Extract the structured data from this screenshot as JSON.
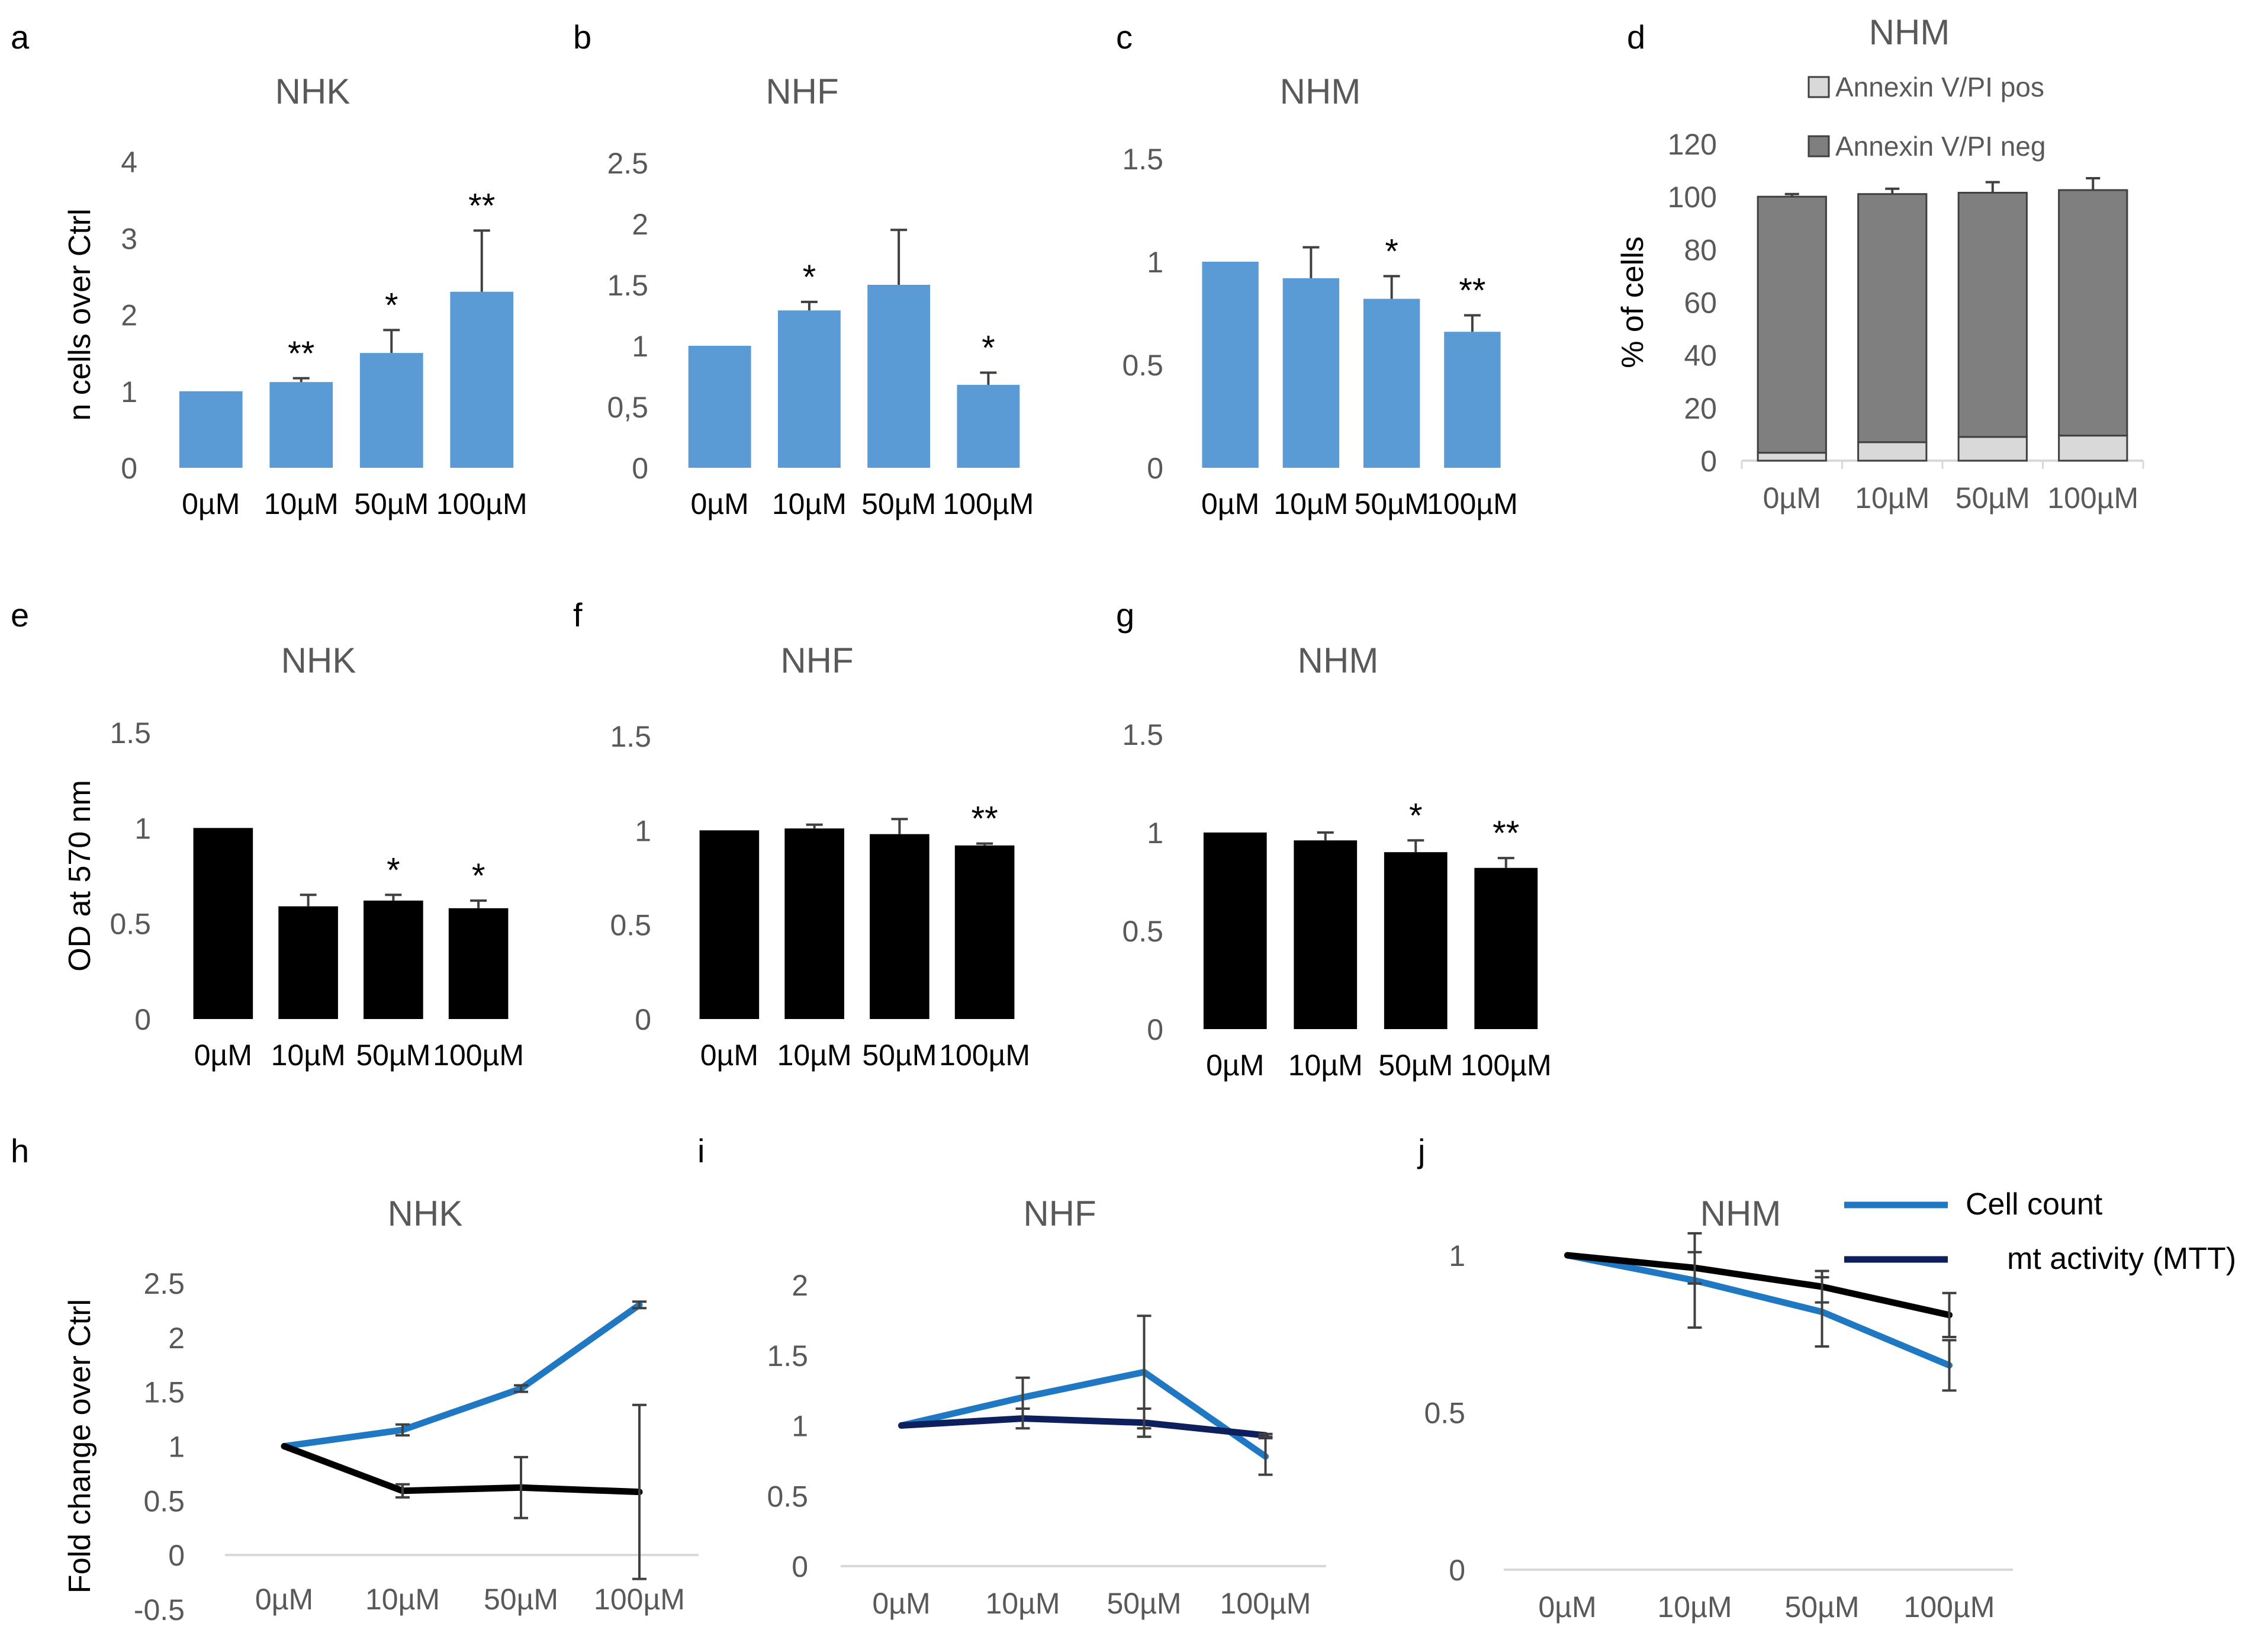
{
  "colors": {
    "blue_bar": "#5b9bd5",
    "black_bar": "#000000",
    "dark_gray": "#7f7f7f",
    "light_gray": "#d9d9d9",
    "axis": "#d9d9d9",
    "tick_text": "#595959",
    "error_bar": "#404040",
    "line_blue": "#1f78c1",
    "line_black": "#000000",
    "line_navy": "#0d1f5c"
  },
  "chart_data": [
    {
      "panel": "a",
      "type": "bar",
      "title": "NHK",
      "ylabel": "n cells over Ctrl",
      "categories": [
        "0µM",
        "10µM",
        "50µM",
        "100µM"
      ],
      "values": [
        1,
        1.12,
        1.5,
        2.3
      ],
      "errors": [
        0,
        0.05,
        0.3,
        0.8
      ],
      "sig": [
        "",
        "**",
        "*",
        "**"
      ],
      "ylim": [
        0,
        4
      ],
      "yticks": [
        "0",
        "1",
        "2",
        "3",
        "4"
      ]
    },
    {
      "panel": "b",
      "type": "bar",
      "title": "NHF",
      "ylabel": "",
      "categories": [
        "0µM",
        "10µM",
        "50µM",
        "100µM"
      ],
      "values": [
        1,
        1.29,
        1.5,
        0.68
      ],
      "errors": [
        0,
        0.07,
        0.45,
        0.1
      ],
      "sig": [
        "",
        "*",
        "",
        "*"
      ],
      "ylim": [
        0,
        2.5
      ],
      "yticks": [
        "0",
        "0,5",
        "1",
        "1.5",
        "2",
        "2.5"
      ]
    },
    {
      "panel": "c",
      "type": "bar",
      "title": "NHM",
      "ylabel": "",
      "categories": [
        "0µM",
        "10µM",
        "50µM",
        "100µM"
      ],
      "values": [
        1,
        0.92,
        0.82,
        0.66
      ],
      "errors": [
        0,
        0.15,
        0.11,
        0.08
      ],
      "sig": [
        "",
        "",
        "*",
        "**"
      ],
      "ylim": [
        0,
        1.5
      ],
      "yticks": [
        "0",
        "0.5",
        "1",
        "1.5"
      ]
    },
    {
      "panel": "d",
      "type": "stacked_bar",
      "title": "NHM",
      "ylabel": "% of cells",
      "categories": [
        "0µM",
        "10µM",
        "50µM",
        "100µM"
      ],
      "series": [
        {
          "name": "Annexin V/PI pos",
          "values": [
            3,
            7,
            9,
            9.5
          ],
          "errors": [
            1,
            2,
            4,
            4.5
          ]
        },
        {
          "name": "Annexin V/PI neg",
          "values": [
            97,
            94,
            92.5,
            93
          ],
          "errors": [
            1,
            2,
            4,
            4.5
          ]
        }
      ],
      "ylim": [
        0,
        120
      ],
      "yticks": [
        "0",
        "20",
        "40",
        "60",
        "80",
        "100",
        "120"
      ],
      "legend": [
        "Annexin V/PI pos",
        "Annexin V/PI neg"
      ]
    },
    {
      "panel": "e",
      "type": "bar",
      "title": "NHK",
      "ylabel": "OD at 570 nm",
      "categories": [
        "0µM",
        "10µM",
        "50µM",
        "100µM"
      ],
      "values": [
        1,
        0.59,
        0.62,
        0.58
      ],
      "errors": [
        0,
        0.06,
        0.03,
        0.04
      ],
      "sig": [
        "",
        "",
        "*",
        "*"
      ],
      "ylim": [
        0,
        1.5
      ],
      "yticks": [
        "0",
        "0.5",
        "1",
        "1.5"
      ]
    },
    {
      "panel": "f",
      "type": "bar",
      "title": "NHF",
      "ylabel": "",
      "categories": [
        "0µM",
        "10µM",
        "50µM",
        "100µM"
      ],
      "values": [
        1,
        1.01,
        0.98,
        0.92
      ],
      "errors": [
        0,
        0.02,
        0.08,
        0.01
      ],
      "sig": [
        "",
        "",
        "",
        "**"
      ],
      "ylim": [
        0,
        1.5
      ],
      "yticks": [
        "0",
        "0.5",
        "1",
        "1.5"
      ]
    },
    {
      "panel": "g",
      "type": "bar",
      "title": "NHM",
      "ylabel": "",
      "categories": [
        "0µM",
        "10µM",
        "50µM",
        "100µM"
      ],
      "values": [
        1,
        0.96,
        0.9,
        0.82
      ],
      "errors": [
        0,
        0.04,
        0.06,
        0.05
      ],
      "sig": [
        "",
        "",
        "*",
        "**"
      ],
      "ylim": [
        0,
        1.5
      ],
      "yticks": [
        "0",
        "0.5",
        "1",
        "1.5"
      ]
    },
    {
      "panel": "h",
      "type": "line",
      "title": "NHK",
      "ylabel": "Fold change over Ctrl",
      "categories": [
        "0µM",
        "10µM",
        "50µM",
        "100µM"
      ],
      "series": [
        {
          "name": "Cell count",
          "values": [
            1,
            1.15,
            1.53,
            2.3
          ],
          "errors": [
            0,
            0.05,
            0.03,
            0.03
          ]
        },
        {
          "name": "mt activity (MTT)",
          "values": [
            1,
            0.59,
            0.62,
            0.58
          ],
          "errors": [
            0,
            0.06,
            0.28,
            0.8
          ]
        }
      ],
      "ylim": [
        -0.5,
        2.5
      ],
      "yticks": [
        "-0.5",
        "0",
        "0.5",
        "1",
        "1.5",
        "2",
        "2.5"
      ]
    },
    {
      "panel": "i",
      "type": "line",
      "title": "NHF",
      "ylabel": "",
      "categories": [
        "0µM",
        "10µM",
        "50µM",
        "100µM"
      ],
      "series": [
        {
          "name": "Cell count",
          "values": [
            1,
            1.2,
            1.38,
            0.78
          ],
          "errors": [
            0,
            0.14,
            0.4,
            0.13
          ]
        },
        {
          "name": "mt activity (MTT)",
          "values": [
            1,
            1.05,
            1.02,
            0.93
          ],
          "errors": [
            0,
            0.07,
            0.1,
            0.01
          ]
        }
      ],
      "ylim": [
        0,
        2
      ],
      "yticks": [
        "0",
        "0.5",
        "1",
        "1.5",
        "2"
      ]
    },
    {
      "panel": "j",
      "type": "line",
      "title": "NHM",
      "ylabel": "",
      "categories": [
        "0µM",
        "10µM",
        "50µM",
        "100µM"
      ],
      "series": [
        {
          "name": "Cell count",
          "values": [
            1,
            0.92,
            0.82,
            0.65
          ],
          "errors": [
            0,
            0.15,
            0.11,
            0.08
          ]
        },
        {
          "name": "mt activity (MTT)",
          "values": [
            1,
            0.96,
            0.9,
            0.81
          ],
          "errors": [
            0,
            0.05,
            0.05,
            0.07
          ]
        }
      ],
      "ylim": [
        0,
        1
      ],
      "yticks": [
        "0",
        "0.5",
        "1"
      ],
      "legend": [
        "Cell count",
        "mt activity (MTT)"
      ]
    }
  ]
}
